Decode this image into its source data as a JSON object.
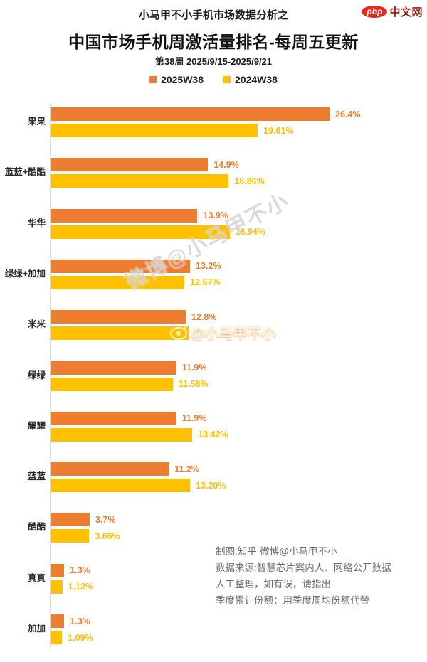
{
  "header": {
    "pretitle": "小马甲不小手机市场数据分析之",
    "title": "中国市场手机周激活量排名-每周五更新",
    "subtitle": "第38周 2025/9/15-2025/9/21",
    "logo": {
      "badge": "php",
      "text": "中文网"
    }
  },
  "legend": [
    {
      "label": "2025W38",
      "color": "#ED7D31"
    },
    {
      "label": "2024W38",
      "color": "#FFC000"
    }
  ],
  "chart_data": {
    "type": "bar",
    "orientation": "horizontal",
    "title": "中国市场手机周激活量排名-每周五更新",
    "categories": [
      "果果",
      "蓝蓝+酷酷",
      "华华",
      "绿绿+加加",
      "米米",
      "绿绿",
      "耀耀",
      "蓝蓝",
      "酷酷",
      "真真",
      "加加"
    ],
    "series": [
      {
        "name": "2025W38",
        "color": "#ED7D31",
        "values": [
          26.4,
          14.9,
          13.9,
          13.2,
          12.8,
          11.9,
          11.9,
          11.2,
          3.7,
          1.3,
          1.3
        ],
        "labels": [
          "26.4%",
          "14.9%",
          "13.9%",
          "13.2%",
          "12.8%",
          "11.9%",
          "11.9%",
          "11.2%",
          "3.7%",
          "1.3%",
          "1.3%"
        ]
      },
      {
        "name": "2024W38",
        "color": "#FFC000",
        "values": [
          19.61,
          16.86,
          16.94,
          12.67,
          13.1,
          11.58,
          13.42,
          13.2,
          3.66,
          1.12,
          1.09
        ],
        "labels": [
          "19.61%",
          "16.86%",
          "16.94%",
          "12.67%",
          "",
          "11.58%",
          "13.42%",
          "13.20%",
          "3.66%",
          "1.12%",
          "1.09%"
        ]
      }
    ],
    "xlim": [
      0,
      27
    ],
    "grid": false,
    "legend_position": "top"
  },
  "watermarks": {
    "diagonal": "微博@小马甲不小",
    "weibo": "@小马甲不小"
  },
  "footer": {
    "lines": [
      "制图:知乎-微博@小马甲不小",
      "数据来源:智慧芯片案内人、网络公开数据",
      "人工整理，如有误，请指出",
      "季度累计份额：用季度周均份额代替"
    ]
  },
  "colors": {
    "series_2025": "#ED7D31",
    "series_2024": "#FFC000",
    "axis_line": "#d9d9d9",
    "title_text": "#111111",
    "credits_text": "#6b6b6b",
    "logo_red": "#e8291c"
  }
}
